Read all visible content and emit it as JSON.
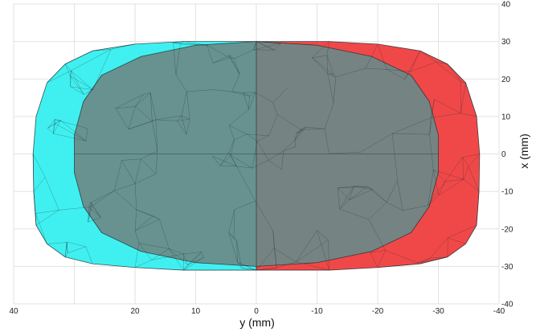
{
  "chart_data": {
    "type": "area",
    "title": "",
    "xlabel": "y (mm)",
    "ylabel": "x (mm)",
    "x_axis": {
      "reversed": true,
      "lim": [
        40,
        -40
      ],
      "ticks": [
        40,
        30,
        20,
        10,
        0,
        -10,
        -20,
        -30,
        -40
      ],
      "tick_labels": [
        "40",
        "",
        "20",
        "10",
        "0",
        "-10",
        "-20",
        "-30",
        "-40"
      ]
    },
    "y_axis": {
      "position": "right",
      "lim": [
        -40,
        40
      ],
      "ticks": [
        40,
        30,
        20,
        10,
        0,
        -10,
        -20,
        -30,
        -40
      ],
      "tick_labels": [
        "40",
        "30",
        "20",
        "10",
        "0",
        "-10",
        "-20",
        "-30",
        "-40"
      ]
    },
    "grid": true,
    "colors": {
      "cyan_shape": "#40f0f0",
      "red_shape": "#f04848",
      "inner_shape": "#6a8a88",
      "mesh_line": "#1a2a30"
    },
    "shapes": [
      {
        "name": "",
        "color": "#40f0f0",
        "y_mm": [
          0,
          12,
          20,
          27,
          31.5,
          34.5,
          36.3,
          36.8,
          36.7,
          36.3,
          34.5,
          31.5,
          27,
          20,
          12,
          0
        ],
        "x_mm": [
          30,
          30,
          29.3,
          27.5,
          24,
          19,
          10,
          0,
          -10,
          -19,
          -24,
          -27.5,
          -29.3,
          -30.3,
          -31,
          -31
        ]
      },
      {
        "name": "",
        "color": "#f04848",
        "y_mm": [
          0,
          -12,
          -20,
          -27,
          -31.5,
          -34.5,
          -36.3,
          -36.8,
          -36.7,
          -36.3,
          -34.5,
          -31.5,
          -27,
          -20,
          -12,
          0
        ],
        "x_mm": [
          30,
          30,
          29.3,
          27.5,
          24,
          19,
          10,
          0,
          -10,
          -19,
          -24,
          -27.5,
          -29.3,
          -30.3,
          -31,
          -31
        ]
      },
      {
        "name": "",
        "color": "#6a8a88",
        "y_mm": [
          0,
          10,
          19,
          25.5,
          28.5,
          30,
          30,
          28.5,
          25.5,
          19,
          10,
          0,
          -10,
          -19,
          -25.5,
          -28.5,
          -30,
          -30,
          -28.5,
          -25.5,
          -19,
          -10
        ],
        "x_mm": [
          30,
          29,
          26,
          21,
          14,
          5,
          -5,
          -14,
          -21,
          -26,
          -29,
          -30,
          -29,
          -26,
          -21,
          -14,
          -5,
          5,
          14,
          21,
          26,
          29
        ]
      }
    ]
  }
}
